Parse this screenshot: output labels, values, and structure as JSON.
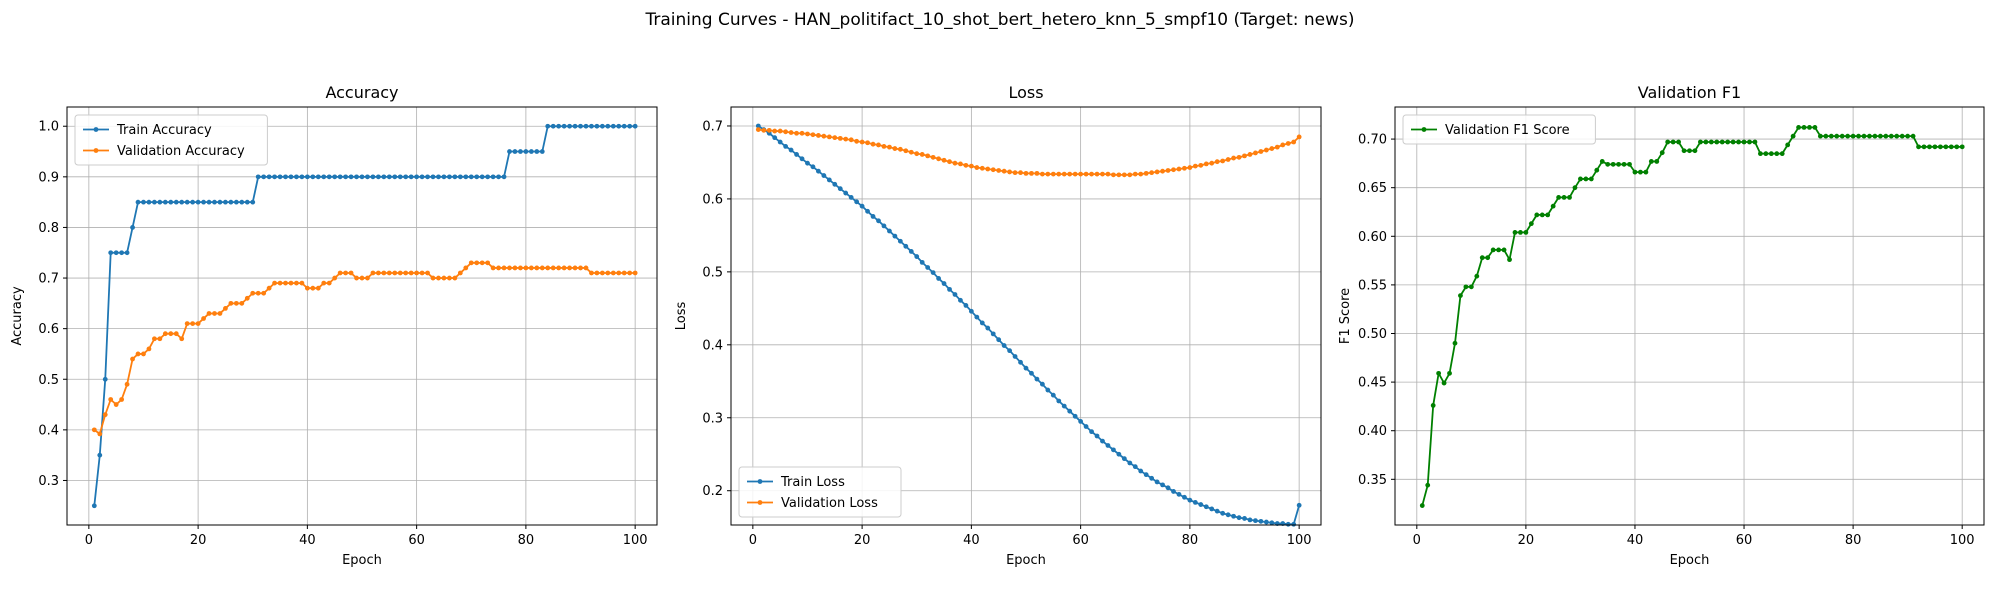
{
  "figure": {
    "suptitle": "Training Curves - HAN_politifact_10_shot_bert_hetero_knn_5_smpf10 (Target: news)"
  },
  "colors": {
    "train": "#1f77b4",
    "validation": "#ff7f0e",
    "f1": "#008000",
    "grid": "#b0b0b0",
    "axes": "#000000"
  },
  "chart_data": [
    {
      "type": "line",
      "title": "Accuracy",
      "xlabel": "Epoch",
      "ylabel": "Accuracy",
      "xlim": [
        -4,
        104
      ],
      "ylim": [
        0.212,
        1.038
      ],
      "xticks": [
        0,
        20,
        40,
        60,
        80,
        100
      ],
      "yticks": [
        0.3,
        0.4,
        0.5,
        0.6,
        0.7,
        0.8,
        0.9,
        1.0
      ],
      "ytick_decimals": 1,
      "grid": true,
      "legend_position": "top-left",
      "x_start": 1,
      "series": [
        {
          "name": "Train Accuracy",
          "color": "#1f77b4",
          "values": [
            0.25,
            0.35,
            0.5,
            0.75,
            0.75,
            0.75,
            0.75,
            0.8,
            0.85,
            0.85,
            0.85,
            0.85,
            0.85,
            0.85,
            0.85,
            0.85,
            0.85,
            0.85,
            0.85,
            0.85,
            0.85,
            0.85,
            0.85,
            0.85,
            0.85,
            0.85,
            0.85,
            0.85,
            0.85,
            0.85,
            0.9,
            0.9,
            0.9,
            0.9,
            0.9,
            0.9,
            0.9,
            0.9,
            0.9,
            0.9,
            0.9,
            0.9,
            0.9,
            0.9,
            0.9,
            0.9,
            0.9,
            0.9,
            0.9,
            0.9,
            0.9,
            0.9,
            0.9,
            0.9,
            0.9,
            0.9,
            0.9,
            0.9,
            0.9,
            0.9,
            0.9,
            0.9,
            0.9,
            0.9,
            0.9,
            0.9,
            0.9,
            0.9,
            0.9,
            0.9,
            0.9,
            0.9,
            0.9,
            0.9,
            0.9,
            0.9,
            0.95,
            0.95,
            0.95,
            0.95,
            0.95,
            0.95,
            0.95,
            1.0,
            1.0,
            1.0,
            1.0,
            1.0,
            1.0,
            1.0,
            1.0,
            1.0,
            1.0,
            1.0,
            1.0,
            1.0,
            1.0,
            1.0,
            1.0,
            1.0
          ]
        },
        {
          "name": "Validation Accuracy",
          "color": "#ff7f0e",
          "values": [
            0.4,
            0.392,
            0.43,
            0.46,
            0.45,
            0.46,
            0.49,
            0.54,
            0.55,
            0.55,
            0.56,
            0.58,
            0.58,
            0.59,
            0.59,
            0.59,
            0.58,
            0.61,
            0.61,
            0.61,
            0.62,
            0.63,
            0.63,
            0.63,
            0.64,
            0.65,
            0.65,
            0.65,
            0.66,
            0.67,
            0.67,
            0.67,
            0.68,
            0.69,
            0.69,
            0.69,
            0.69,
            0.69,
            0.69,
            0.68,
            0.68,
            0.68,
            0.69,
            0.69,
            0.7,
            0.71,
            0.71,
            0.71,
            0.7,
            0.7,
            0.7,
            0.71,
            0.71,
            0.71,
            0.71,
            0.71,
            0.71,
            0.71,
            0.71,
            0.71,
            0.71,
            0.71,
            0.7,
            0.7,
            0.7,
            0.7,
            0.7,
            0.71,
            0.72,
            0.73,
            0.73,
            0.73,
            0.73,
            0.72,
            0.72,
            0.72,
            0.72,
            0.72,
            0.72,
            0.72,
            0.72,
            0.72,
            0.72,
            0.72,
            0.72,
            0.72,
            0.72,
            0.72,
            0.72,
            0.72,
            0.72,
            0.71,
            0.71,
            0.71,
            0.71,
            0.71,
            0.71,
            0.71,
            0.71,
            0.71
          ]
        }
      ]
    },
    {
      "type": "line",
      "title": "Loss",
      "xlabel": "Epoch",
      "ylabel": "Loss",
      "xlim": [
        -4,
        104
      ],
      "ylim": [
        0.153,
        0.726
      ],
      "xticks": [
        0,
        20,
        40,
        60,
        80,
        100
      ],
      "yticks": [
        0.2,
        0.3,
        0.4,
        0.5,
        0.6,
        0.7
      ],
      "ytick_decimals": 1,
      "grid": true,
      "legend_position": "bottom-left",
      "x_start": 1,
      "series": [
        {
          "name": "Train Loss",
          "color": "#1f77b4",
          "values": [
            0.7,
            0.695,
            0.69,
            0.684,
            0.678,
            0.672,
            0.667,
            0.661,
            0.655,
            0.649,
            0.644,
            0.638,
            0.632,
            0.626,
            0.62,
            0.614,
            0.608,
            0.602,
            0.596,
            0.59,
            0.583,
            0.576,
            0.57,
            0.563,
            0.556,
            0.549,
            0.542,
            0.535,
            0.528,
            0.521,
            0.513,
            0.506,
            0.499,
            0.491,
            0.484,
            0.476,
            0.469,
            0.461,
            0.454,
            0.446,
            0.438,
            0.43,
            0.423,
            0.415,
            0.407,
            0.399,
            0.392,
            0.384,
            0.376,
            0.368,
            0.361,
            0.353,
            0.346,
            0.338,
            0.331,
            0.323,
            0.316,
            0.309,
            0.302,
            0.295,
            0.288,
            0.281,
            0.275,
            0.268,
            0.262,
            0.256,
            0.25,
            0.244,
            0.238,
            0.233,
            0.227,
            0.222,
            0.217,
            0.212,
            0.208,
            0.204,
            0.199,
            0.195,
            0.191,
            0.187,
            0.184,
            0.181,
            0.178,
            0.175,
            0.172,
            0.169,
            0.167,
            0.165,
            0.163,
            0.162,
            0.16,
            0.159,
            0.158,
            0.157,
            0.156,
            0.155,
            0.155,
            0.154,
            0.154,
            0.18
          ]
        },
        {
          "name": "Validation Loss",
          "color": "#ff7f0e",
          "values": [
            0.695,
            0.694,
            0.694,
            0.693,
            0.693,
            0.692,
            0.691,
            0.69,
            0.69,
            0.689,
            0.688,
            0.687,
            0.686,
            0.685,
            0.684,
            0.683,
            0.682,
            0.681,
            0.679,
            0.678,
            0.677,
            0.675,
            0.674,
            0.672,
            0.671,
            0.669,
            0.668,
            0.666,
            0.664,
            0.662,
            0.661,
            0.659,
            0.657,
            0.655,
            0.653,
            0.651,
            0.649,
            0.648,
            0.646,
            0.645,
            0.643,
            0.642,
            0.641,
            0.64,
            0.639,
            0.638,
            0.637,
            0.636,
            0.636,
            0.635,
            0.635,
            0.635,
            0.634,
            0.634,
            0.634,
            0.634,
            0.634,
            0.634,
            0.634,
            0.634,
            0.634,
            0.634,
            0.634,
            0.634,
            0.634,
            0.633,
            0.633,
            0.633,
            0.633,
            0.634,
            0.634,
            0.635,
            0.636,
            0.637,
            0.638,
            0.639,
            0.64,
            0.641,
            0.642,
            0.643,
            0.645,
            0.646,
            0.648,
            0.649,
            0.651,
            0.652,
            0.654,
            0.656,
            0.657,
            0.659,
            0.661,
            0.663,
            0.665,
            0.667,
            0.669,
            0.671,
            0.674,
            0.676,
            0.678,
            0.685
          ]
        }
      ]
    },
    {
      "type": "line",
      "title": "Validation F1",
      "xlabel": "Epoch",
      "ylabel": "F1 Score",
      "xlim": [
        -4,
        104
      ],
      "ylim": [
        0.303,
        0.733
      ],
      "xticks": [
        0,
        20,
        40,
        60,
        80,
        100
      ],
      "yticks": [
        0.35,
        0.4,
        0.45,
        0.5,
        0.55,
        0.6,
        0.65,
        0.7
      ],
      "ytick_decimals": 2,
      "grid": true,
      "legend_position": "top-left",
      "x_start": 1,
      "series": [
        {
          "name": "Validation F1 Score",
          "color": "#008000",
          "values": [
            0.323,
            0.344,
            0.426,
            0.459,
            0.449,
            0.459,
            0.49,
            0.539,
            0.548,
            0.548,
            0.559,
            0.578,
            0.578,
            0.586,
            0.586,
            0.586,
            0.576,
            0.604,
            0.604,
            0.604,
            0.613,
            0.622,
            0.622,
            0.622,
            0.631,
            0.64,
            0.64,
            0.64,
            0.65,
            0.659,
            0.659,
            0.659,
            0.668,
            0.677,
            0.674,
            0.674,
            0.674,
            0.674,
            0.674,
            0.666,
            0.666,
            0.666,
            0.677,
            0.677,
            0.686,
            0.697,
            0.697,
            0.697,
            0.688,
            0.688,
            0.688,
            0.697,
            0.697,
            0.697,
            0.697,
            0.697,
            0.697,
            0.697,
            0.697,
            0.697,
            0.697,
            0.697,
            0.685,
            0.685,
            0.685,
            0.685,
            0.685,
            0.694,
            0.703,
            0.712,
            0.712,
            0.712,
            0.712,
            0.703,
            0.703,
            0.703,
            0.703,
            0.703,
            0.703,
            0.703,
            0.703,
            0.703,
            0.703,
            0.703,
            0.703,
            0.703,
            0.703,
            0.703,
            0.703,
            0.703,
            0.703,
            0.692,
            0.692,
            0.692,
            0.692,
            0.692,
            0.692,
            0.692,
            0.692,
            0.692
          ]
        }
      ]
    }
  ]
}
